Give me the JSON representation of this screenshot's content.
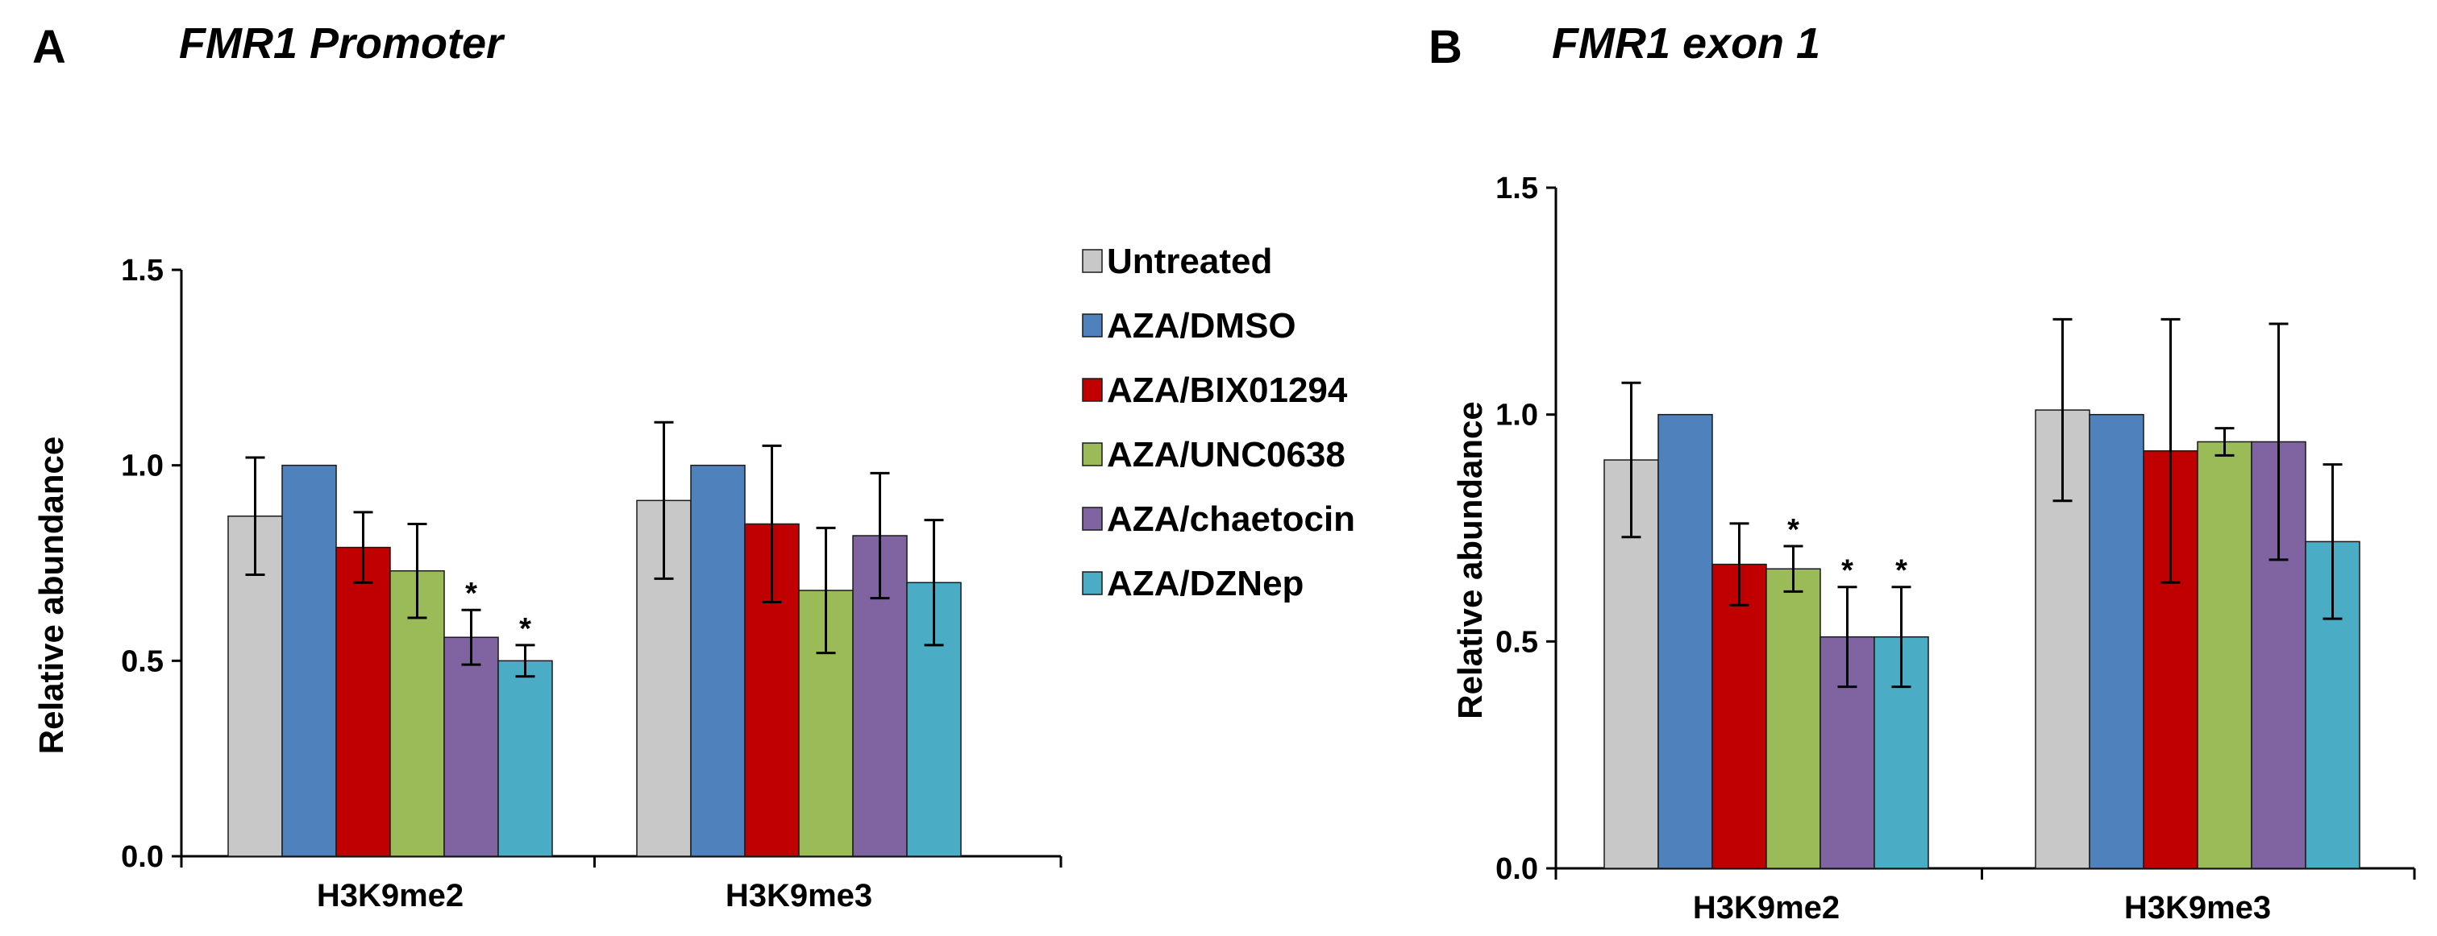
{
  "legend": [
    {
      "label": "Untreated",
      "color": "#c8c8c8"
    },
    {
      "label": "AZA/DMSO",
      "color": "#4f81bd"
    },
    {
      "label": "AZA/BIX01294",
      "color": "#c00000"
    },
    {
      "label": "AZA/UNC0638",
      "color": "#9bbb59"
    },
    {
      "label": "AZA/chaetocin",
      "color": "#8064a2"
    },
    {
      "label": "AZA/DZNep",
      "color": "#4bacc6"
    }
  ],
  "chart_data": [
    {
      "type": "bar",
      "panel": "A",
      "title": "FMR1 Promoter",
      "ylabel": "Relative abundance",
      "xlabel": "",
      "ylim": [
        0,
        1.5
      ],
      "yticks": [
        "0.0",
        "0.5",
        "1.0",
        "1.5"
      ],
      "categories": [
        "H3K9me2",
        "H3K9me3"
      ],
      "series": [
        {
          "name": "Untreated",
          "values": [
            0.87,
            0.91
          ],
          "errors": [
            0.15,
            0.2
          ],
          "sig": [
            "",
            ""
          ]
        },
        {
          "name": "AZA/DMSO",
          "values": [
            1.0,
            1.0
          ],
          "errors": [
            0.0,
            0.0
          ],
          "sig": [
            "",
            ""
          ]
        },
        {
          "name": "AZA/BIX01294",
          "values": [
            0.79,
            0.85
          ],
          "errors": [
            0.09,
            0.2
          ],
          "sig": [
            "",
            ""
          ]
        },
        {
          "name": "AZA/UNC0638",
          "values": [
            0.73,
            0.68
          ],
          "errors": [
            0.12,
            0.16
          ],
          "sig": [
            "",
            ""
          ]
        },
        {
          "name": "AZA/chaetocin",
          "values": [
            0.56,
            0.82
          ],
          "errors": [
            0.07,
            0.16
          ],
          "sig": [
            "*",
            ""
          ]
        },
        {
          "name": "AZA/DZNep",
          "values": [
            0.5,
            0.7
          ],
          "errors": [
            0.04,
            0.16
          ],
          "sig": [
            "*",
            ""
          ]
        }
      ]
    },
    {
      "type": "bar",
      "panel": "B",
      "title": "FMR1 exon 1",
      "ylabel": "Relative abundance",
      "xlabel": "",
      "ylim": [
        0,
        1.5
      ],
      "yticks": [
        "0.0",
        "0.5",
        "1.0",
        "1.5"
      ],
      "categories": [
        "H3K9me2",
        "H3K9me3"
      ],
      "series": [
        {
          "name": "Untreated",
          "values": [
            0.9,
            1.01
          ],
          "errors": [
            0.17,
            0.2
          ],
          "sig": [
            "",
            ""
          ]
        },
        {
          "name": "AZA/DMSO",
          "values": [
            1.0,
            1.0
          ],
          "errors": [
            0.0,
            0.0
          ],
          "sig": [
            "",
            ""
          ]
        },
        {
          "name": "AZA/BIX01294",
          "values": [
            0.67,
            0.92
          ],
          "errors": [
            0.09,
            0.29
          ],
          "sig": [
            "",
            ""
          ]
        },
        {
          "name": "AZA/UNC0638",
          "values": [
            0.66,
            0.94
          ],
          "errors": [
            0.05,
            0.03
          ],
          "sig": [
            "*",
            ""
          ]
        },
        {
          "name": "AZA/chaetocin",
          "values": [
            0.51,
            0.94
          ],
          "errors": [
            0.11,
            0.26
          ],
          "sig": [
            "*",
            ""
          ]
        },
        {
          "name": "AZA/DZNep",
          "values": [
            0.51,
            0.72
          ],
          "errors": [
            0.11,
            0.17
          ],
          "sig": [
            "*",
            ""
          ]
        }
      ]
    }
  ]
}
